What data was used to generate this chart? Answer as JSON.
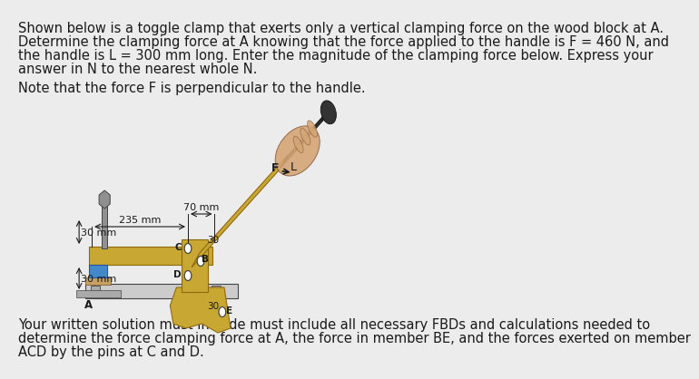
{
  "paragraph1": "Shown below is a toggle clamp that exerts only a vertical clamping force on the wood block at A.",
  "paragraph2": "Determine the clamping force at A knowing that the force applied to the handle is F = 460 N, and",
  "paragraph3": "the handle is L = 300 mm long. Enter the magnitude of the clamping force below. Express your",
  "paragraph4": "answer in N to the nearest whole N.",
  "note_text": "Note that the force F is perpendicular to the handle.",
  "dim1": "70 mm",
  "dim2": "235 mm",
  "dim3": "30 mm",
  "dim4": "30 mm",
  "label_F": "F",
  "label_L": "L",
  "label_B": "B",
  "label_C": "C",
  "label_D": "D",
  "label_E": "E",
  "label_A": "A",
  "label_30a": "30",
  "label_30b": "30",
  "footer1": "Your written solution must include must include all necessary FBDs and calculations needed to",
  "footer2": "determine the force clamping force at A, the force in member BE, and the forces exerted on member",
  "footer3": "ACD by the pins at C and D.",
  "text_color": "#1a1a1a",
  "text_fontsize": 10.5,
  "fig_bg": "#ececec",
  "gold": "#c8a832",
  "dark_gold": "#906810",
  "gray": "#909090",
  "dark_gray": "#444444",
  "blue": "#4488cc",
  "light_gray": "#cccccc",
  "white": "#ffffff",
  "skin": "#d4a574",
  "dark_skin": "#8b6040",
  "handle_dark": "#2a2a2a"
}
